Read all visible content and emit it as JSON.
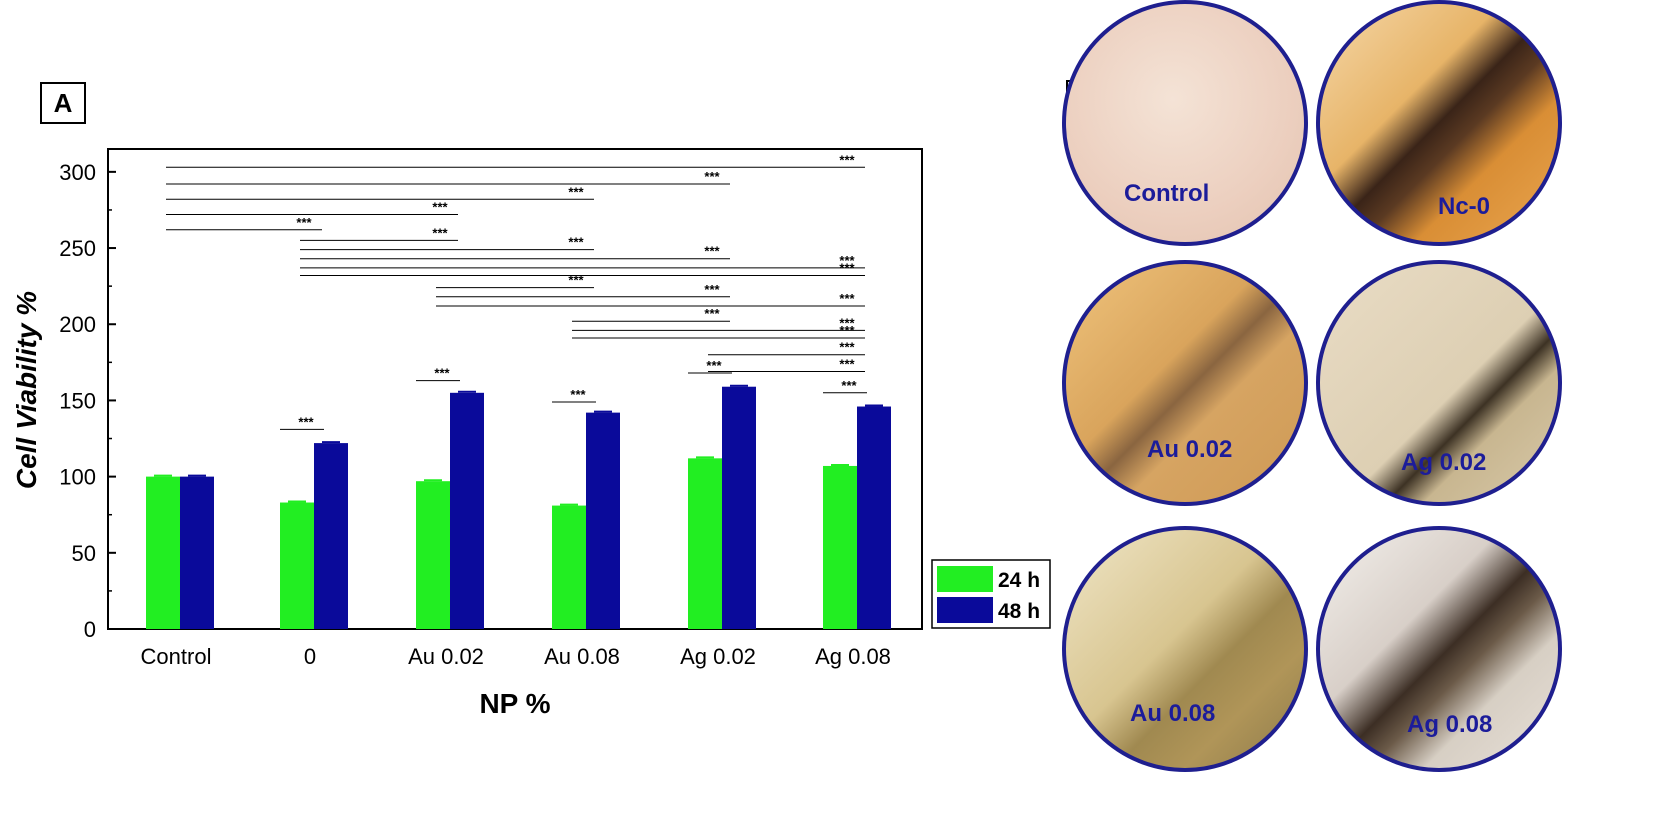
{
  "panel_a": {
    "label": "A"
  },
  "panel_b": {
    "label": "B",
    "micrographs": [
      {
        "id": "control",
        "label": "Control"
      },
      {
        "id": "nc0",
        "label": "Nc-0"
      },
      {
        "id": "au002",
        "label": "Au 0.02"
      },
      {
        "id": "ag002",
        "label": "Ag 0.02"
      },
      {
        "id": "au008",
        "label": "Au 0.08"
      },
      {
        "id": "ag008",
        "label": "Ag 0.08"
      }
    ]
  },
  "colors": {
    "series_24h": "#22ee22",
    "series_48h": "#0a0a9a",
    "micro_border": "#1f1f8f",
    "micro_label": "#1c1c9a"
  },
  "chart_data": {
    "type": "bar",
    "xlabel": "NP %",
    "ylabel": "Cell Viability %",
    "ylim": [
      0,
      315
    ],
    "yticks": [
      0,
      50,
      100,
      150,
      200,
      250,
      300
    ],
    "categories": [
      "Control",
      "0",
      "Au 0.02",
      "Au 0.08",
      "Ag 0.02",
      "Ag 0.08"
    ],
    "series": [
      {
        "name": "24 h",
        "values": [
          100,
          83,
          97,
          81,
          112,
          107
        ]
      },
      {
        "name": "48 h",
        "values": [
          100,
          122,
          155,
          142,
          159,
          146
        ]
      }
    ],
    "legend_position": "outside-right",
    "significance_label": "***",
    "significance": [
      {
        "from": 0,
        "to": 5,
        "y": 303
      },
      {
        "from": 0,
        "to": 4,
        "y": 292
      },
      {
        "from": 0,
        "to": 3,
        "y": 282
      },
      {
        "from": 0,
        "to": 2,
        "y": 272
      },
      {
        "from": 0,
        "to": 1,
        "y": 262
      },
      {
        "from": 1,
        "to": 2,
        "y": 255
      },
      {
        "from": 1,
        "to": 3,
        "y": 249
      },
      {
        "from": 1,
        "to": 4,
        "y": 243
      },
      {
        "from": 1,
        "to": 5,
        "y": 237
      },
      {
        "from": 1,
        "to": 5,
        "y": 232
      },
      {
        "from": 2,
        "to": 3,
        "y": 224
      },
      {
        "from": 2,
        "to": 4,
        "y": 218
      },
      {
        "from": 2,
        "to": 5,
        "y": 212
      },
      {
        "from": 3,
        "to": 4,
        "y": 202
      },
      {
        "from": 3,
        "to": 5,
        "y": 196
      },
      {
        "from": 3,
        "to": 5,
        "y": 191
      },
      {
        "from": 4,
        "to": 5,
        "y": 180
      },
      {
        "from": 4,
        "to": 5,
        "y": 169
      },
      {
        "bar": 1,
        "y": 131
      },
      {
        "bar": 2,
        "y": 163
      },
      {
        "bar": 3,
        "y": 149
      },
      {
        "bar": 4,
        "y": 168
      },
      {
        "bar": 5,
        "y": 155
      }
    ]
  }
}
